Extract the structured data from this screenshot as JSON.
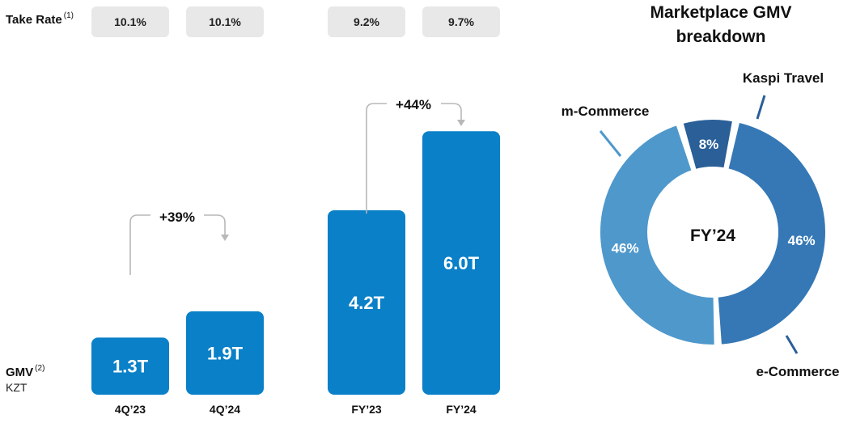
{
  "take_rate": {
    "label": "Take Rate",
    "sup": "(1)",
    "values": [
      "10.1%",
      "10.1%",
      "9.2%",
      "9.7%"
    ]
  },
  "gmv": {
    "label": "GMV",
    "sup": "(2)",
    "unit": "KZT"
  },
  "growth": {
    "quarter": "+39%",
    "year": "+44%"
  },
  "donut": {
    "title_line1": "Marketplace GMV",
    "title_line2": "breakdown",
    "center": "FY’24"
  },
  "colors": {
    "bar": "#0a80c8",
    "mcommerce": "#4e98cc",
    "ecommerce": "#3578b5",
    "travel": "#2a5f98",
    "arrow": "#b8b8b8",
    "pill": "#e8e8e8"
  },
  "chart_data": [
    {
      "type": "bar",
      "categories": [
        "4Q’23",
        "4Q’24",
        "FY’23",
        "FY’24"
      ],
      "values": [
        1.3,
        1.9,
        4.2,
        6.0
      ],
      "value_labels": [
        "1.3T",
        "1.9T",
        "4.2T",
        "6.0T"
      ],
      "ylabel": "GMV KZT"
    },
    {
      "type": "pie",
      "title": "Marketplace GMV breakdown",
      "slices": [
        {
          "label": "Kaspi Travel",
          "value": 8,
          "value_label": "8%"
        },
        {
          "label": "e-Commerce",
          "value": 46,
          "value_label": "46%"
        },
        {
          "label": "m-Commerce",
          "value": 46,
          "value_label": "46%"
        }
      ]
    }
  ]
}
